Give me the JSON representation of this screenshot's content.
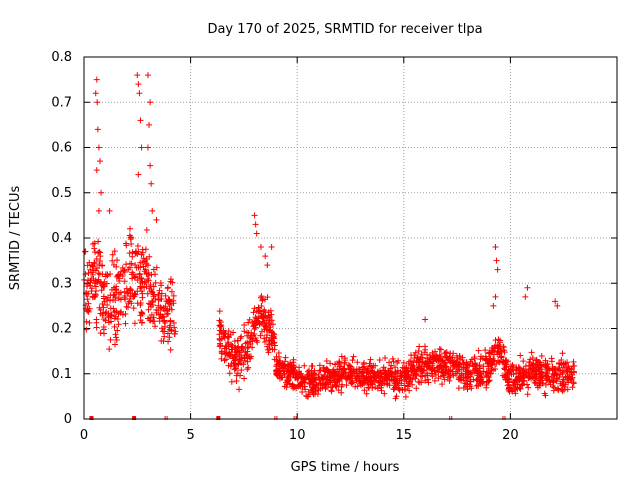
{
  "chart_data": {
    "type": "scatter",
    "title": "Day 170 of 2025, SRMTID for receiver tlpa",
    "xlabel": "GPS time / hours",
    "ylabel": "SRMTID / TECUs",
    "xlim": [
      0,
      25
    ],
    "ylim": [
      0,
      0.8
    ],
    "xticks": [
      "0",
      "5",
      "10",
      "15",
      "20"
    ],
    "xtick_values": [
      0,
      5,
      10,
      15,
      20
    ],
    "yticks": [
      "0",
      "0.1",
      "0.2",
      "0.3",
      "0.4",
      "0.5",
      "0.6",
      "0.7",
      "0.8"
    ],
    "ytick_values": [
      0,
      0.1,
      0.2,
      0.3,
      0.4,
      0.5,
      0.6,
      0.7,
      0.8
    ],
    "grid": true,
    "marker": "+",
    "color": "#ff0000",
    "series": [
      {
        "name": "SRMTID",
        "segments": [
          {
            "start": 0.0,
            "end": 4.3,
            "level": [
              [
                0,
                0.27
              ],
              [
                0.5,
                0.32
              ],
              [
                1.0,
                0.25
              ],
              [
                1.5,
                0.26
              ],
              [
                2.0,
                0.3
              ],
              [
                2.5,
                0.32
              ],
              [
                3.0,
                0.3
              ],
              [
                3.5,
                0.24
              ],
              [
                4.3,
                0.22
              ]
            ],
            "spread": 0.09
          },
          {
            "start": 6.3,
            "end": 9.0,
            "level": [
              [
                6.3,
                0.19
              ],
              [
                6.8,
                0.15
              ],
              [
                7.3,
                0.13
              ],
              [
                7.8,
                0.16
              ],
              [
                8.2,
                0.24
              ],
              [
                8.6,
                0.22
              ],
              [
                9.0,
                0.13
              ]
            ],
            "spread": 0.05
          },
          {
            "start": 9.0,
            "end": 14.0,
            "level": [
              [
                9.0,
                0.12
              ],
              [
                10.0,
                0.09
              ],
              [
                10.8,
                0.08
              ],
              [
                12.0,
                0.1
              ],
              [
                13.0,
                0.1
              ],
              [
                14.0,
                0.09
              ]
            ],
            "spread": 0.03
          },
          {
            "start": 14.0,
            "end": 19.0,
            "level": [
              [
                14.0,
                0.09
              ],
              [
                15.0,
                0.09
              ],
              [
                16.0,
                0.12
              ],
              [
                17.0,
                0.12
              ],
              [
                18.0,
                0.1
              ],
              [
                19.0,
                0.11
              ]
            ],
            "spread": 0.035
          },
          {
            "start": 19.0,
            "end": 23.0,
            "level": [
              [
                19.0,
                0.12
              ],
              [
                19.5,
                0.15
              ],
              [
                20.0,
                0.08
              ],
              [
                20.6,
                0.1
              ],
              [
                21.2,
                0.1
              ],
              [
                22.0,
                0.1
              ],
              [
                23.0,
                0.1
              ]
            ],
            "spread": 0.035
          }
        ],
        "spikes": [
          [
            0.55,
            0.72
          ],
          [
            0.6,
            0.75
          ],
          [
            0.62,
            0.7
          ],
          [
            0.65,
            0.64
          ],
          [
            0.7,
            0.6
          ],
          [
            0.75,
            0.57
          ],
          [
            0.6,
            0.55
          ],
          [
            0.8,
            0.5
          ],
          [
            0.7,
            0.46
          ],
          [
            2.5,
            0.76
          ],
          [
            2.55,
            0.74
          ],
          [
            2.6,
            0.72
          ],
          [
            2.65,
            0.66
          ],
          [
            2.7,
            0.6
          ],
          [
            2.55,
            0.54
          ],
          [
            3.0,
            0.76
          ],
          [
            3.1,
            0.7
          ],
          [
            3.05,
            0.65
          ],
          [
            3.0,
            0.6
          ],
          [
            3.1,
            0.56
          ],
          [
            3.15,
            0.52
          ],
          [
            3.2,
            0.46
          ],
          [
            1.2,
            0.46
          ],
          [
            3.4,
            0.44
          ],
          [
            8.0,
            0.45
          ],
          [
            8.05,
            0.43
          ],
          [
            8.1,
            0.41
          ],
          [
            8.3,
            0.38
          ],
          [
            8.5,
            0.36
          ],
          [
            8.6,
            0.34
          ],
          [
            8.8,
            0.38
          ],
          [
            19.3,
            0.38
          ],
          [
            19.35,
            0.35
          ],
          [
            19.4,
            0.33
          ],
          [
            19.3,
            0.27
          ],
          [
            19.2,
            0.25
          ],
          [
            20.8,
            0.29
          ],
          [
            20.7,
            0.27
          ],
          [
            22.1,
            0.26
          ],
          [
            22.2,
            0.25
          ],
          [
            16.0,
            0.22
          ]
        ]
      }
    ]
  }
}
